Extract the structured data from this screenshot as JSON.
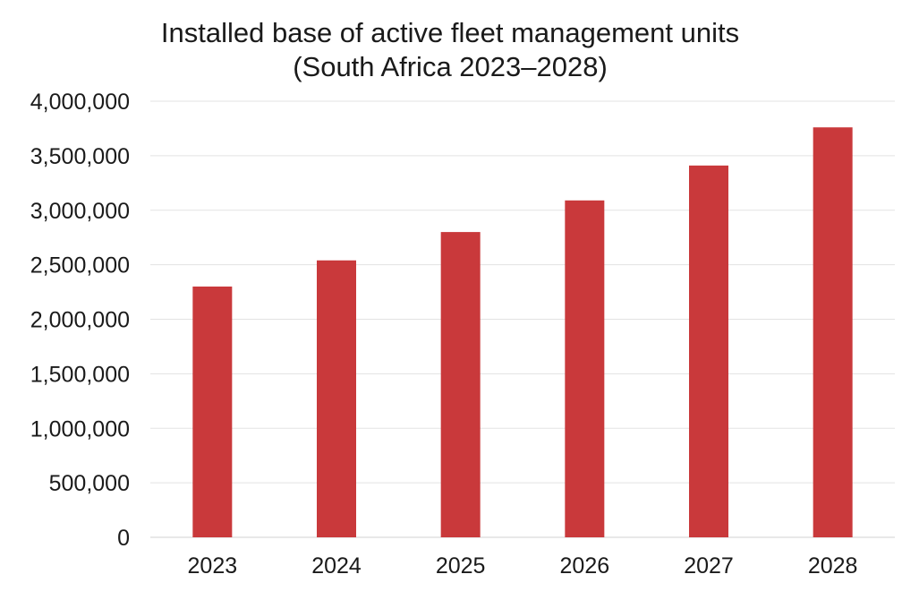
{
  "chart_data": {
    "type": "bar",
    "title_lines": [
      "Installed base of active fleet management units",
      "(South Africa 2023–2028)"
    ],
    "xlabel": "",
    "ylabel": "",
    "categories": [
      "2023",
      "2024",
      "2025",
      "2026",
      "2027",
      "2028"
    ],
    "values": [
      2300000,
      2540000,
      2800000,
      3090000,
      3410000,
      3760000
    ],
    "ylim": [
      0,
      4000000
    ],
    "yticks": [
      0,
      500000,
      1000000,
      1500000,
      2000000,
      2500000,
      3000000,
      3500000,
      4000000
    ],
    "ytick_labels": [
      "0",
      "500,000",
      "1,000,000",
      "1,500,000",
      "2,000,000",
      "2,500,000",
      "3,000,000",
      "3,500,000",
      "4,000,000"
    ],
    "grid": true,
    "bar_color": "#c9393b"
  }
}
